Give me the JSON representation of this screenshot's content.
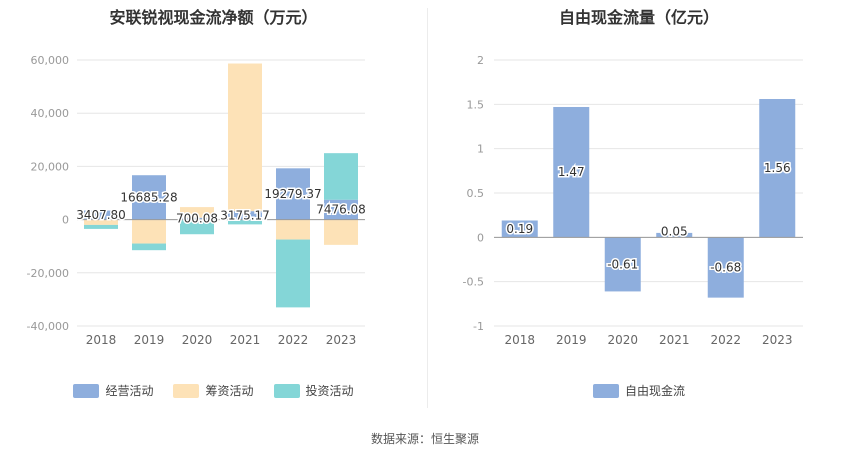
{
  "source_text": "数据来源：恒生聚源",
  "chart_data": [
    {
      "type": "bar",
      "stacked": true,
      "title": "安联锐视现金流净额（万元）",
      "categories": [
        "2018",
        "2019",
        "2020",
        "2021",
        "2022",
        "2023"
      ],
      "ylim": [
        -40000,
        60000
      ],
      "yticks": [
        -40000,
        -20000,
        0,
        20000,
        40000,
        60000
      ],
      "ytick_labels": [
        "-40,000",
        "-20,000",
        "0",
        "20,000",
        "40,000",
        "60,000"
      ],
      "grid": true,
      "legend_position": "bottom",
      "series": [
        {
          "name": "经营活动",
          "color": "#8eaedd",
          "values": [
            3407.8,
            16685.28,
            700.08,
            3175.17,
            19279.37,
            7476.08
          ]
        },
        {
          "name": "筹资活动",
          "color": "#fde2b7",
          "values": [
            -2000,
            -9000,
            4000,
            55500,
            -7500,
            -9500
          ]
        },
        {
          "name": "投资活动",
          "color": "#84d6d7",
          "values": [
            -1500,
            -2500,
            -5500,
            -1800,
            -25500,
            17500
          ]
        }
      ],
      "data_labels": [
        "3407.80",
        "16685.28",
        "700.08",
        "3175.17",
        "19279.37",
        "7476.08"
      ]
    },
    {
      "type": "bar",
      "title": "自由现金流量（亿元）",
      "categories": [
        "2018",
        "2019",
        "2020",
        "2021",
        "2022",
        "2023"
      ],
      "ylim": [
        -1,
        2
      ],
      "yticks": [
        -1,
        -0.5,
        0,
        0.5,
        1,
        1.5,
        2
      ],
      "ytick_labels": [
        "-1",
        "-0.5",
        "0",
        "0.5",
        "1",
        "1.5",
        "2"
      ],
      "grid": true,
      "legend_position": "bottom",
      "series": [
        {
          "name": "自由现金流",
          "color": "#8eaedd",
          "values": [
            0.19,
            1.47,
            -0.61,
            0.05,
            -0.68,
            1.56
          ]
        }
      ],
      "data_labels": [
        "0.19",
        "1.47",
        "-0.61",
        "0.05",
        "-0.68",
        "1.56"
      ]
    }
  ]
}
